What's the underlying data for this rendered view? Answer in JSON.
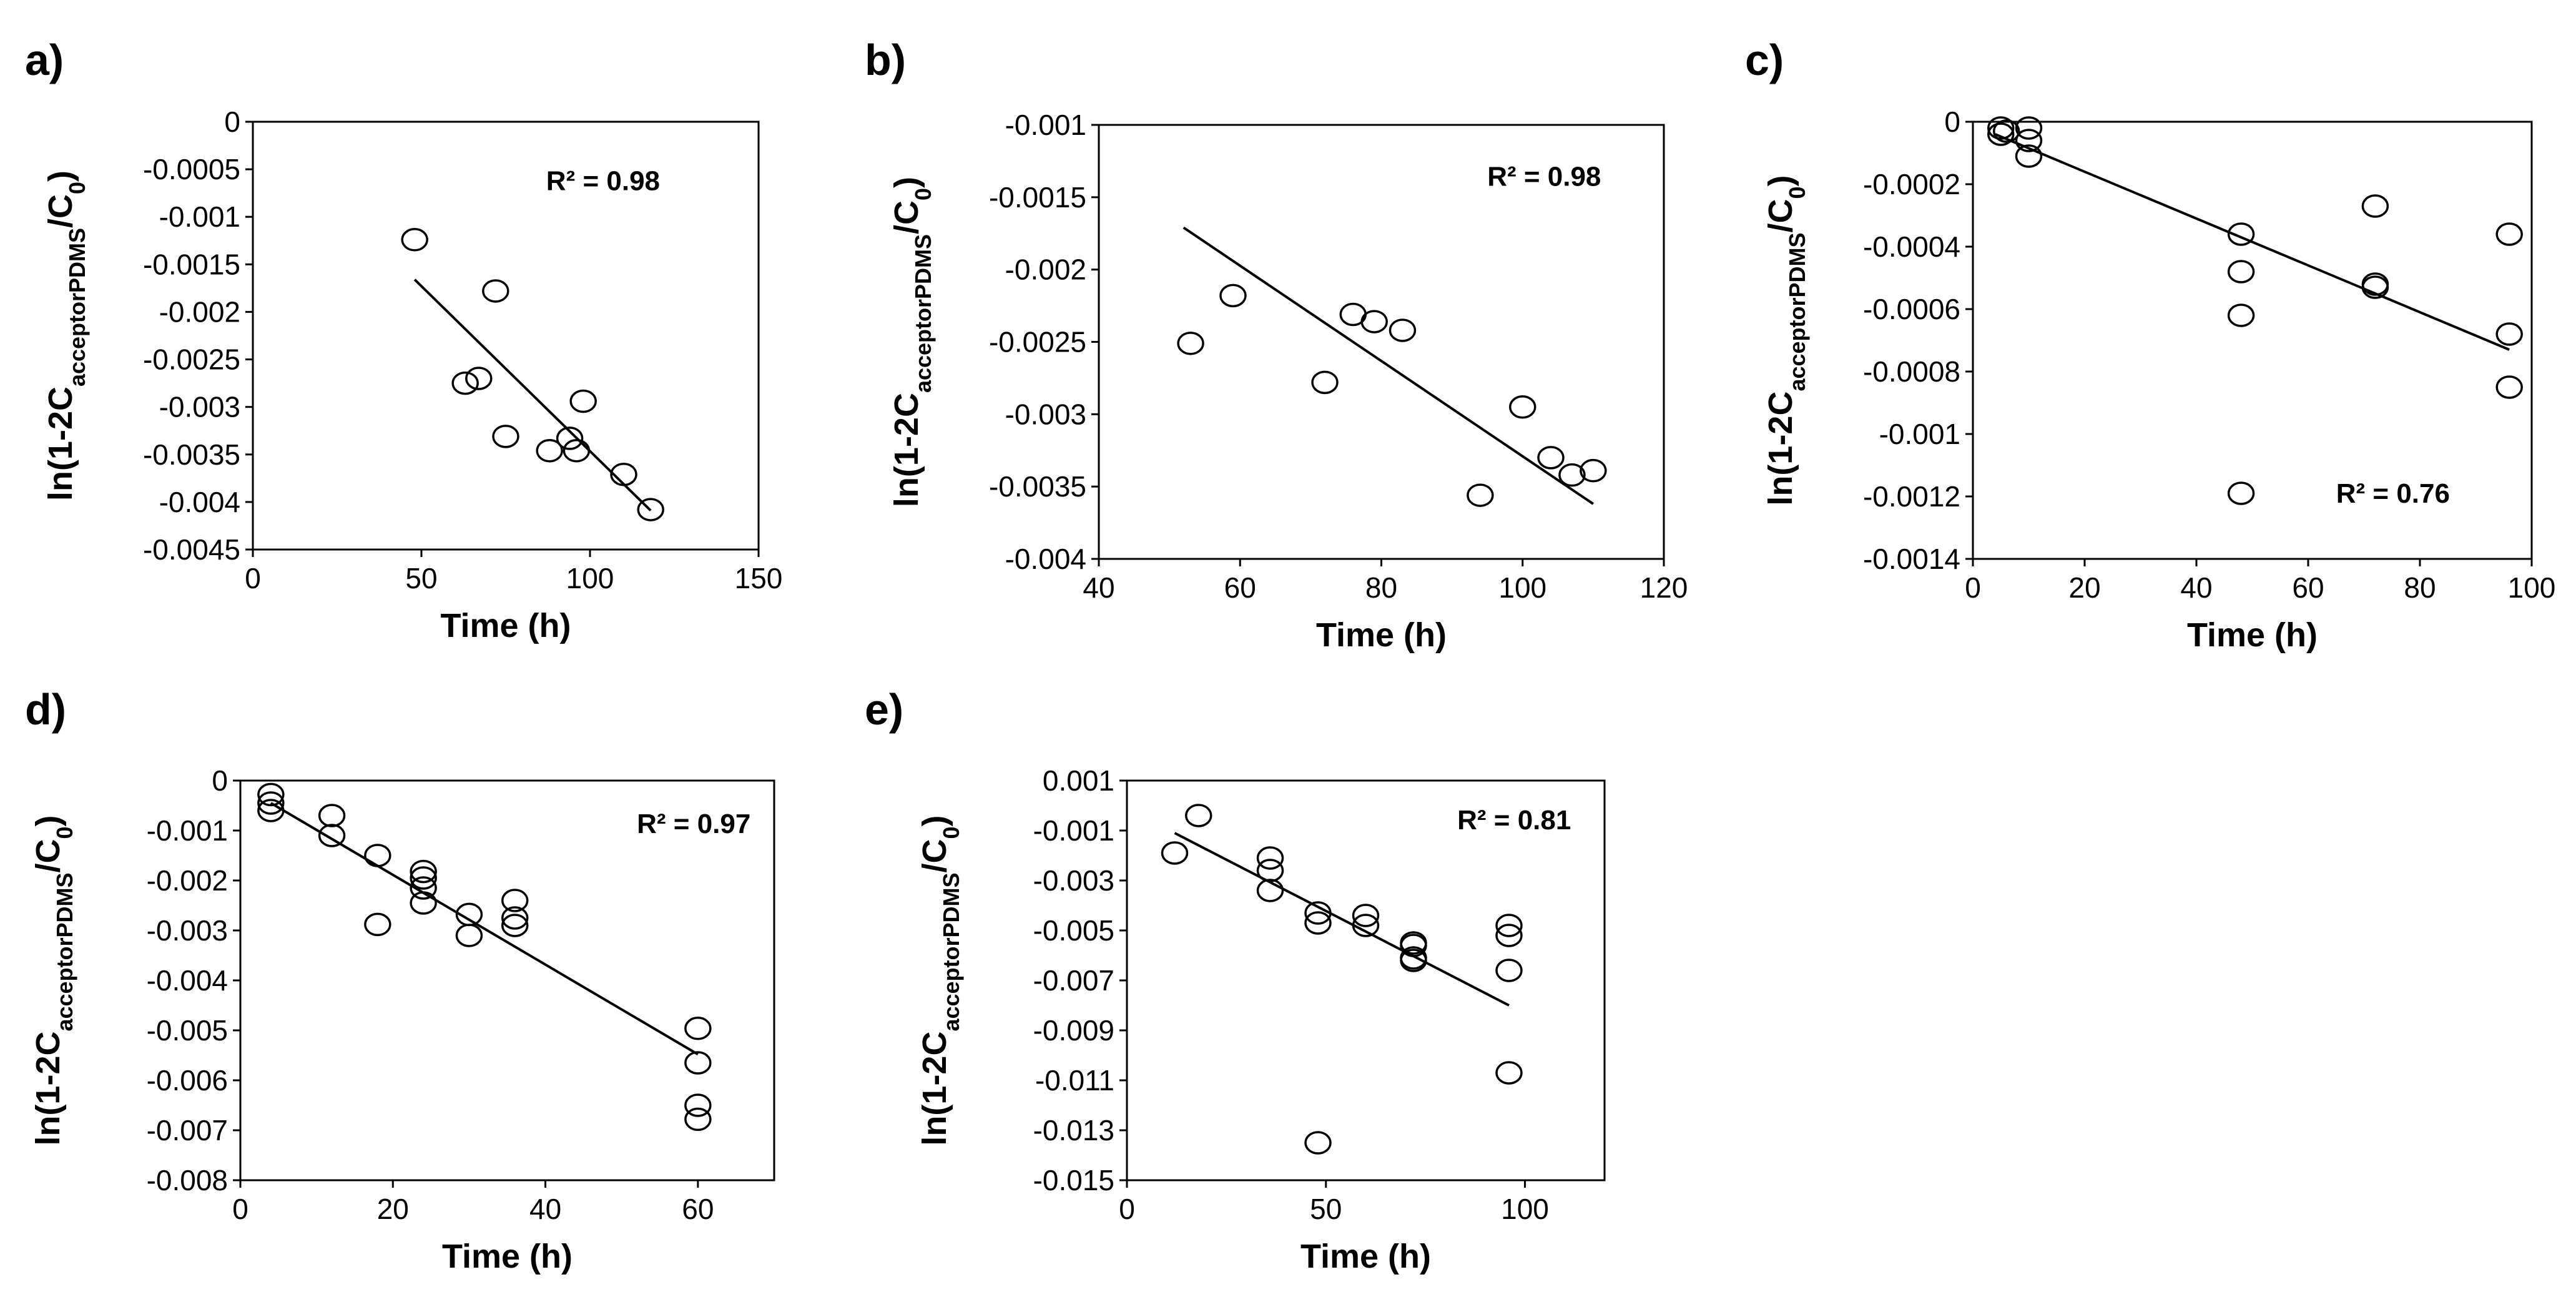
{
  "chart_data": [
    {
      "type": "scatter",
      "panel_label": "a)",
      "xlabel": "Time (h)",
      "ylabel": {
        "prefix": "ln(1-2C",
        "sub1": "acceptorPDMS",
        "mid": "/C",
        "sub2": "0",
        "suffix": ")"
      },
      "xlim": [
        0,
        150
      ],
      "ylim": [
        -0.0045,
        0
      ],
      "xticks": [
        0,
        50,
        100,
        150
      ],
      "xtick_labels": [
        "0",
        "50",
        "100",
        "150"
      ],
      "yticks": [
        0,
        -0.0005,
        -0.001,
        -0.0015,
        -0.002,
        -0.0025,
        -0.003,
        -0.0035,
        -0.004,
        -0.0045
      ],
      "ytick_labels": [
        "0",
        "-0.0005",
        "-0.001",
        "-0.0015",
        "-0.002",
        "-0.0025",
        "-0.003",
        "-0.0035",
        "-0.004",
        "-0.0045"
      ],
      "r2": "R² = 0.98",
      "r2_anchor": {
        "x": 87,
        "y": -0.00072
      },
      "trendline": {
        "x": [
          48,
          118
        ],
        "y": [
          -0.00166,
          -0.00409
        ]
      },
      "points": {
        "x": [
          48,
          72,
          63,
          67,
          75,
          88,
          94,
          96,
          98,
          110,
          118
        ],
        "y": [
          -0.00124,
          -0.00178,
          -0.00275,
          -0.0027,
          -0.00331,
          -0.00346,
          -0.00333,
          -0.00346,
          -0.00294,
          -0.00371,
          -0.00408
        ]
      }
    },
    {
      "type": "scatter",
      "panel_label": "b)",
      "xlabel": "Time (h)",
      "ylabel": {
        "prefix": "ln(1-2C",
        "sub1": "acceptorPDMS",
        "mid": "/C",
        "sub2": "0",
        "suffix": ")"
      },
      "xlim": [
        40,
        120
      ],
      "ylim": [
        -0.004,
        -0.001
      ],
      "xticks": [
        40,
        60,
        80,
        100,
        120
      ],
      "xtick_labels": [
        "40",
        "60",
        "80",
        "100",
        "120"
      ],
      "yticks": [
        -0.001,
        -0.0015,
        -0.002,
        -0.0025,
        -0.003,
        -0.0035,
        -0.004
      ],
      "ytick_labels": [
        "-0.001",
        "-0.0015",
        "-0.002",
        "-0.0025",
        "-0.003",
        "-0.0035",
        "-0.004"
      ],
      "r2": "R² = 0.98",
      "r2_anchor": {
        "x": 95,
        "y": -0.00142
      },
      "trendline": {
        "x": [
          52,
          110
        ],
        "y": [
          -0.00171,
          -0.00362
        ]
      },
      "points": {
        "x": [
          53,
          59,
          72,
          76,
          79,
          83,
          94,
          100,
          104,
          107,
          110
        ],
        "y": [
          -0.00251,
          -0.00218,
          -0.00278,
          -0.00231,
          -0.00236,
          -0.00242,
          -0.00356,
          -0.00295,
          -0.0033,
          -0.00342,
          -0.00339
        ]
      }
    },
    {
      "type": "scatter",
      "panel_label": "c)",
      "xlabel": "Time (h)",
      "ylabel": {
        "prefix": "ln(1-2C",
        "sub1": "acceptorPDMS",
        "mid": "/C",
        "sub2": "0",
        "suffix": ")"
      },
      "xlim": [
        0,
        100
      ],
      "ylim": [
        -0.0014,
        0
      ],
      "xticks": [
        0,
        20,
        40,
        60,
        80,
        100
      ],
      "xtick_labels": [
        "0",
        "20",
        "40",
        "60",
        "80",
        "100"
      ],
      "yticks": [
        0,
        -0.0002,
        -0.0004,
        -0.0006,
        -0.0008,
        -0.001,
        -0.0012,
        -0.0014
      ],
      "ytick_labels": [
        "0",
        "-0.0002",
        "-0.0004",
        "-0.0006",
        "-0.0008",
        "-0.001",
        "-0.0012",
        "-0.0014"
      ],
      "r2": "R² = 0.76",
      "r2_anchor": {
        "x": 65,
        "y": -0.00122
      },
      "trendline": {
        "x": [
          4,
          96
        ],
        "y": [
          -4e-05,
          -0.00073
        ]
      },
      "points": {
        "x": [
          5,
          5,
          6,
          10,
          10,
          10,
          48,
          48,
          48,
          48,
          72,
          72,
          72,
          96,
          96,
          96
        ],
        "y": [
          -2e-05,
          -4e-05,
          -3e-05,
          -2e-05,
          -6e-05,
          -0.00011,
          -0.00036,
          -0.00048,
          -0.00062,
          -0.00119,
          -0.00027,
          -0.00052,
          -0.00053,
          -0.00036,
          -0.00068,
          -0.00085
        ]
      }
    },
    {
      "type": "scatter",
      "panel_label": "d)",
      "xlabel": "Time (h)",
      "ylabel": {
        "prefix": "ln(1-2C",
        "sub1": "acceptorPDMS",
        "mid": "/C",
        "sub2": "0",
        "suffix": ")"
      },
      "xlim": [
        0,
        70
      ],
      "ylim": [
        -0.008,
        0
      ],
      "xticks": [
        0,
        20,
        40,
        60
      ],
      "xtick_labels": [
        "0",
        "20",
        "40",
        "60"
      ],
      "yticks": [
        0,
        -0.001,
        -0.002,
        -0.003,
        -0.004,
        -0.005,
        -0.006,
        -0.007,
        -0.008
      ],
      "ytick_labels": [
        "0",
        "-0.001",
        "-0.002",
        "-0.003",
        "-0.004",
        "-0.005",
        "-0.006",
        "-0.007",
        "-0.008"
      ],
      "r2": "R² = 0.97",
      "r2_anchor": {
        "x": 52,
        "y": -0.00105
      },
      "trendline": {
        "x": [
          4,
          60
        ],
        "y": [
          -0.00045,
          -0.00548
        ]
      },
      "points": {
        "x": [
          4,
          4,
          4,
          12,
          12,
          18,
          18,
          24,
          24,
          24,
          24,
          30,
          30,
          36,
          36,
          36,
          60,
          60,
          60,
          60
        ],
        "y": [
          -0.00028,
          -0.00045,
          -0.0006,
          -0.0007,
          -0.0011,
          -0.0015,
          -0.00288,
          -0.00182,
          -0.00195,
          -0.00215,
          -0.00245,
          -0.00268,
          -0.0031,
          -0.0024,
          -0.00275,
          -0.0029,
          -0.00496,
          -0.00565,
          -0.0065,
          -0.00678
        ]
      }
    },
    {
      "type": "scatter",
      "panel_label": "e)",
      "xlabel": "Time (h)",
      "ylabel": {
        "prefix": "ln(1-2C",
        "sub1": "acceptorPDMS",
        "mid": "/C",
        "sub2": "0",
        "suffix": ")"
      },
      "xlim": [
        0,
        120
      ],
      "ylim": [
        -0.015,
        0.001
      ],
      "xticks": [
        0,
        50,
        100
      ],
      "xtick_labels": [
        "0",
        "50",
        "100"
      ],
      "yticks": [
        0.001,
        -0.001,
        -0.003,
        -0.005,
        -0.007,
        -0.009,
        -0.011,
        -0.013,
        -0.015
      ],
      "ytick_labels": [
        "0.001",
        "-0.001",
        "-0.003",
        "-0.005",
        "-0.007",
        "-0.009",
        "-0.011",
        "-0.013",
        "-0.015"
      ],
      "r2": "R² = 0.81",
      "r2_anchor": {
        "x": 83,
        "y": -0.00095
      },
      "trendline": {
        "x": [
          12,
          96
        ],
        "y": [
          -0.0011,
          -0.008
        ]
      },
      "points": {
        "x": [
          12,
          18,
          36,
          36,
          36,
          48,
          48,
          48,
          60,
          60,
          72,
          72,
          72,
          72,
          96,
          96,
          96,
          96
        ],
        "y": [
          -0.0019,
          -0.0004,
          -0.0021,
          -0.0026,
          -0.0034,
          -0.0043,
          -0.0047,
          -0.0135,
          -0.0044,
          -0.0048,
          -0.0055,
          -0.0056,
          -0.0061,
          -0.0062,
          -0.0048,
          -0.0052,
          -0.0066,
          -0.0107
        ]
      }
    }
  ]
}
